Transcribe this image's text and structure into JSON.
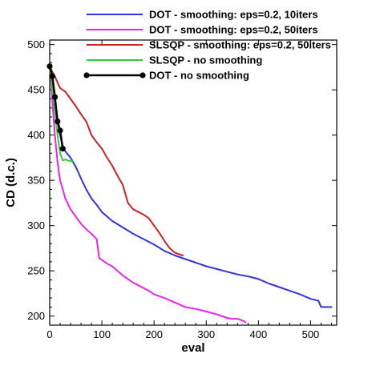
{
  "chart_data": {
    "type": "line",
    "title": "",
    "xlabel": "eval",
    "ylabel": "CD (d.c.)",
    "xlim": [
      0,
      550
    ],
    "ylim": [
      190,
      505
    ],
    "xticks": [
      0,
      100,
      200,
      300,
      400,
      500
    ],
    "yticks": [
      200,
      250,
      300,
      350,
      400,
      450,
      500
    ],
    "grid": false,
    "legend_position": "top-right",
    "series": [
      {
        "name": "DOT - smoothing: eps=0.2, 10iters",
        "color": "#3333dd",
        "marker": "none",
        "x": [
          0,
          5,
          10,
          15,
          20,
          25,
          30,
          40,
          50,
          60,
          70,
          80,
          90,
          100,
          110,
          120,
          140,
          160,
          180,
          200,
          220,
          240,
          260,
          280,
          300,
          320,
          340,
          360,
          380,
          400,
          420,
          440,
          460,
          480,
          500,
          515,
          520,
          530,
          540
        ],
        "y": [
          476,
          455,
          432,
          415,
          400,
          388,
          382,
          375,
          365,
          352,
          340,
          330,
          323,
          315,
          310,
          305,
          298,
          291,
          285,
          279,
          272,
          267,
          263,
          259,
          255,
          252,
          249,
          246,
          244,
          241,
          236,
          232,
          228,
          224,
          219,
          217,
          210,
          210,
          210
        ]
      },
      {
        "name": "DOT - smoothing: eps=0.2, 50iters",
        "color": "#ee22ee",
        "marker": "none",
        "x": [
          0,
          3,
          6,
          10,
          15,
          20,
          25,
          30,
          40,
          50,
          60,
          70,
          80,
          90,
          95,
          100,
          110,
          120,
          130,
          140,
          150,
          160,
          170,
          180,
          190,
          200,
          220,
          240,
          260,
          280,
          300,
          320,
          340,
          350,
          360,
          370,
          375
        ],
        "y": [
          476,
          455,
          430,
          400,
          370,
          350,
          340,
          330,
          318,
          310,
          302,
          296,
          291,
          285,
          264,
          262,
          258,
          255,
          250,
          245,
          241,
          237,
          234,
          231,
          228,
          224,
          220,
          215,
          210,
          208,
          205,
          202,
          198,
          197,
          197,
          195,
          193
        ]
      },
      {
        "name": "SLSQP - smoothing: eps=0.2, 50iters",
        "color": "#cc2222",
        "marker": "none",
        "x": [
          0,
          5,
          10,
          15,
          20,
          30,
          40,
          50,
          60,
          70,
          80,
          90,
          100,
          110,
          120,
          130,
          140,
          150,
          160,
          170,
          180,
          190,
          200,
          210,
          220,
          230,
          240,
          250,
          255
        ],
        "y": [
          476,
          470,
          465,
          458,
          452,
          448,
          440,
          432,
          423,
          415,
          400,
          392,
          385,
          375,
          366,
          355,
          345,
          325,
          318,
          315,
          312,
          308,
          300,
          292,
          283,
          275,
          270,
          268,
          267
        ]
      },
      {
        "name": "SLSQP - no smoothing",
        "color": "#33cc33",
        "marker": "none",
        "x": [
          0,
          5,
          10,
          15,
          20,
          25,
          30,
          35,
          40,
          45
        ],
        "y": [
          476,
          450,
          425,
          400,
          380,
          372,
          373,
          372,
          371,
          371
        ]
      },
      {
        "name": "DOT - no smoothing",
        "color": "#000000",
        "marker": "circle",
        "x": [
          0,
          5,
          10,
          15,
          20,
          25
        ],
        "y": [
          476,
          465,
          442,
          415,
          405,
          385
        ]
      }
    ]
  }
}
